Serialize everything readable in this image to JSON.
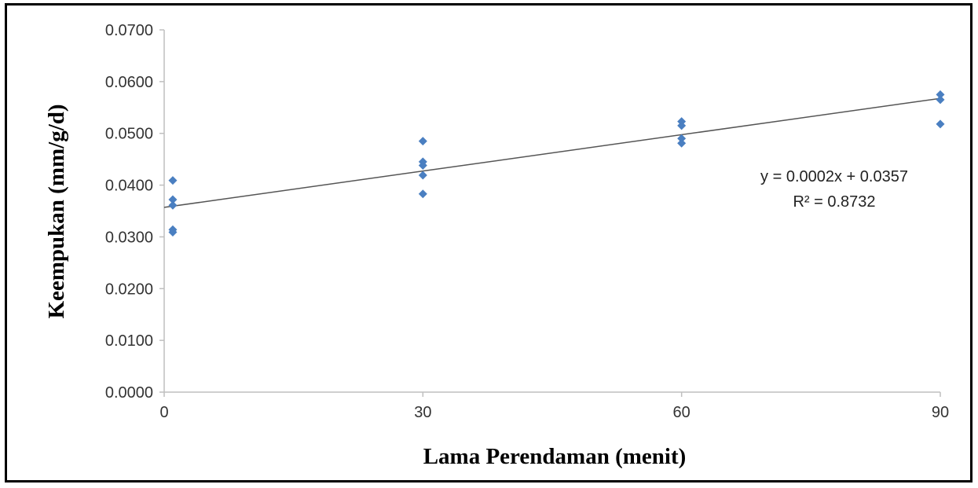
{
  "chart_data": {
    "type": "scatter",
    "xlabel": "Lama Perendaman (menit)",
    "ylabel": "Keempukan (mm/g/d)",
    "xlim": [
      0,
      90
    ],
    "ylim": [
      0,
      0.07
    ],
    "x_ticks": [
      {
        "value": 0,
        "label": "0"
      },
      {
        "value": 30,
        "label": "30"
      },
      {
        "value": 60,
        "label": "60"
      },
      {
        "value": 90,
        "label": "90"
      }
    ],
    "y_ticks": [
      {
        "value": 0.0,
        "label": "0.0000"
      },
      {
        "value": 0.01,
        "label": "0.0100"
      },
      {
        "value": 0.02,
        "label": "0.0200"
      },
      {
        "value": 0.03,
        "label": "0.0300"
      },
      {
        "value": 0.04,
        "label": "0.0400"
      },
      {
        "value": 0.05,
        "label": "0.0500"
      },
      {
        "value": 0.06,
        "label": "0.0600"
      },
      {
        "value": 0.07,
        "label": "0.0700"
      }
    ],
    "grid": false,
    "points": [
      {
        "x": 1,
        "y": 0.0409
      },
      {
        "x": 1,
        "y": 0.0372
      },
      {
        "x": 1,
        "y": 0.0361
      },
      {
        "x": 1,
        "y": 0.0314
      },
      {
        "x": 1,
        "y": 0.0309
      },
      {
        "x": 30,
        "y": 0.0485
      },
      {
        "x": 30,
        "y": 0.0445
      },
      {
        "x": 30,
        "y": 0.0438
      },
      {
        "x": 30,
        "y": 0.0419
      },
      {
        "x": 30,
        "y": 0.0383
      },
      {
        "x": 60,
        "y": 0.0523
      },
      {
        "x": 60,
        "y": 0.0515
      },
      {
        "x": 60,
        "y": 0.049
      },
      {
        "x": 60,
        "y": 0.0481
      },
      {
        "x": 90,
        "y": 0.0575
      },
      {
        "x": 90,
        "y": 0.0565
      },
      {
        "x": 90,
        "y": 0.0518
      }
    ],
    "trendline": {
      "slope": 0.000234,
      "intercept": 0.0357,
      "x_range": [
        0,
        90
      ]
    },
    "annotations": {
      "equation": "y = 0.0002x + 0.0357",
      "r_squared": "R² = 0.8732"
    },
    "colors": {
      "points": "#4a7fc1",
      "trendline": "#555555",
      "axis": "#bfbfbf"
    }
  }
}
